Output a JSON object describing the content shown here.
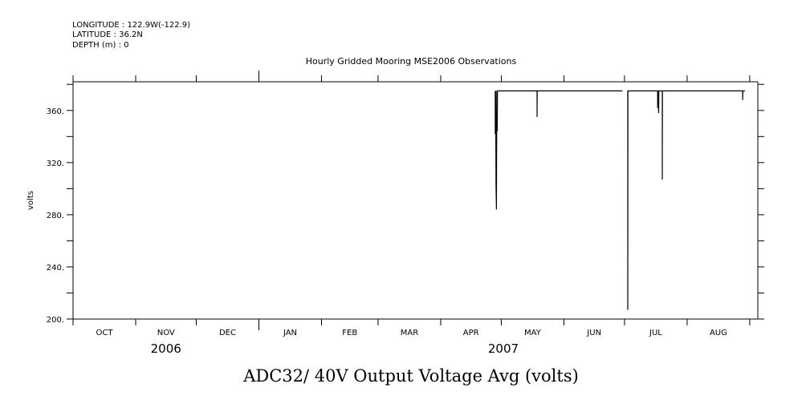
{
  "header": {
    "longitude": "LONGITUDE : 122.9W(-122.9)",
    "latitude": "LATITUDE : 36.2N",
    "depth": "DEPTH (m) : 0"
  },
  "chart_data": {
    "type": "line",
    "title": "Hourly Gridded Mooring MSE2006 Observations",
    "xlabel": "ADC32/ 40V Output Voltage Avg (volts)",
    "ylabel": "volts",
    "x_units": "days since 2006-10-01",
    "xlim": [
      0,
      339
    ],
    "ylim": [
      200,
      382
    ],
    "y_ticks": [
      200,
      240,
      280,
      320,
      360
    ],
    "y_tick_labels": [
      "200.",
      "240.",
      "280.",
      "320.",
      "360."
    ],
    "x_month_ticks": [
      0,
      31,
      61,
      92,
      123,
      151,
      182,
      212,
      243,
      273,
      304,
      335
    ],
    "x_month_labels": [
      "OCT",
      "NOV",
      "DEC",
      "JAN",
      "FEB",
      "MAR",
      "APR",
      "MAY",
      "JUN",
      "JUL",
      "AUG"
    ],
    "year_labels": [
      {
        "label": "2006",
        "day": 46
      },
      {
        "label": "2007",
        "day": 213
      }
    ],
    "year_boundary_day": 92,
    "grid": false,
    "segments": [
      [
        [
          209,
          375
        ],
        [
          209,
          342
        ],
        [
          209.2,
          375
        ],
        [
          209.4,
          302
        ],
        [
          209.6,
          284
        ],
        [
          209.8,
          375
        ],
        [
          210,
          344
        ],
        [
          210.1,
          375
        ],
        [
          229.7,
          375
        ],
        [
          229.7,
          355
        ],
        [
          229.8,
          375
        ],
        [
          272,
          375
        ]
      ],
      [
        [
          274.6,
          375
        ],
        [
          274.6,
          207
        ],
        [
          274.7,
          375
        ],
        [
          289.4,
          375
        ],
        [
          289.4,
          362
        ],
        [
          289.6,
          375
        ],
        [
          289.9,
          358
        ],
        [
          290,
          375
        ],
        [
          291.7,
          375
        ],
        [
          291.7,
          307
        ],
        [
          291.8,
          375
        ],
        [
          331.5,
          375
        ],
        [
          331.5,
          368
        ],
        [
          331.6,
          375
        ],
        [
          332.7,
          375
        ]
      ]
    ]
  }
}
